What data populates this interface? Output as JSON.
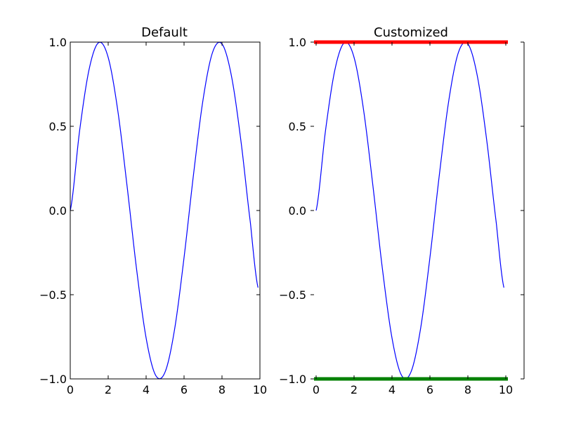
{
  "chart_data": [
    {
      "type": "line",
      "title": "Default",
      "xlim": [
        0,
        10
      ],
      "ylim": [
        -1.0,
        1.0
      ],
      "x_ticks": [
        "0",
        "2",
        "4",
        "6",
        "8",
        "10"
      ],
      "y_ticks": [
        "1.0",
        "0.5",
        "0.0",
        "−0.5",
        "−1.0"
      ],
      "grid": false,
      "series": [
        {
          "color": "#0000ff",
          "x": [
            0,
            0.5,
            1,
            1.5,
            2,
            2.5,
            3,
            3.5,
            4,
            4.5,
            5,
            5.5,
            6,
            6.5,
            7,
            7.5,
            8,
            8.5,
            9,
            9.5,
            9.9
          ],
          "y": [
            0.0,
            0.479,
            0.841,
            0.997,
            0.909,
            0.598,
            0.141,
            -0.351,
            -0.757,
            -0.978,
            -0.959,
            -0.706,
            -0.279,
            0.215,
            0.657,
            0.938,
            0.989,
            0.798,
            0.412,
            -0.075,
            -0.458
          ]
        }
      ]
    },
    {
      "type": "line",
      "title": "Customized",
      "xlim": [
        0,
        10
      ],
      "ylim": [
        -1.0,
        1.0
      ],
      "x_ticks": [
        "0",
        "2",
        "4",
        "6",
        "8",
        "10"
      ],
      "y_ticks": [
        "1.0",
        "0.5",
        "0.0",
        "−0.5",
        "−1.0"
      ],
      "grid": false,
      "spines": {
        "top_color": "#ff0000",
        "bottom_color": "#008000",
        "left_visible": false
      },
      "series": [
        {
          "color": "#0000ff",
          "x": [
            0,
            0.5,
            1,
            1.5,
            2,
            2.5,
            3,
            3.5,
            4,
            4.5,
            5,
            5.5,
            6,
            6.5,
            7,
            7.5,
            8,
            8.5,
            9,
            9.5,
            9.9
          ],
          "y": [
            0.0,
            0.479,
            0.841,
            0.997,
            0.909,
            0.598,
            0.141,
            -0.351,
            -0.757,
            -0.978,
            -0.959,
            -0.706,
            -0.279,
            0.215,
            0.657,
            0.938,
            0.989,
            0.798,
            0.412,
            -0.075,
            -0.458
          ]
        }
      ]
    }
  ]
}
